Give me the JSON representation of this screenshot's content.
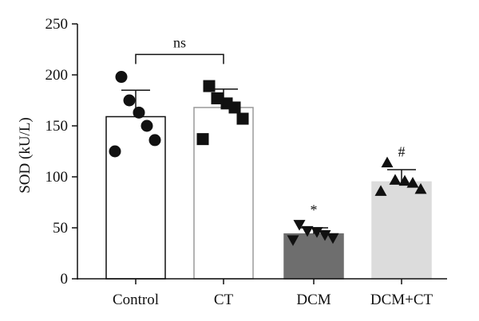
{
  "chart_data": {
    "type": "bar",
    "ylabel": "SOD (kU/L)",
    "ylim": [
      0,
      250
    ],
    "yticks": [
      0,
      50,
      100,
      150,
      200,
      250
    ],
    "categories": [
      "Control",
      "CT",
      "DCM",
      "DCM+CT"
    ],
    "values": [
      159,
      168,
      44,
      95
    ],
    "errors": [
      26,
      18,
      6,
      12
    ],
    "bar_colors": [
      "#ffffff",
      "#ffffff",
      "#6e6e6e",
      "#dcdcdc"
    ],
    "bar_strokes": [
      "#111111",
      "#9a9a9a",
      "#6e6e6e",
      "#dcdcdc"
    ],
    "marker_shapes": [
      "circle",
      "square",
      "triangle-down",
      "triangle-up"
    ],
    "points": [
      [
        198,
        175,
        163,
        150,
        136,
        125
      ],
      [
        189,
        177,
        172,
        168,
        157,
        137
      ],
      [
        53,
        47,
        46,
        43,
        40,
        38
      ],
      [
        114,
        97,
        96,
        94,
        88,
        86
      ]
    ],
    "significance": {
      "bracket": {
        "from": "Control",
        "to": "CT",
        "label": "ns",
        "value": 220
      },
      "marks": [
        {
          "category": "DCM",
          "label": "*",
          "value": 63
        },
        {
          "category": "DCM+CT",
          "label": "#",
          "value": 120
        }
      ]
    }
  }
}
